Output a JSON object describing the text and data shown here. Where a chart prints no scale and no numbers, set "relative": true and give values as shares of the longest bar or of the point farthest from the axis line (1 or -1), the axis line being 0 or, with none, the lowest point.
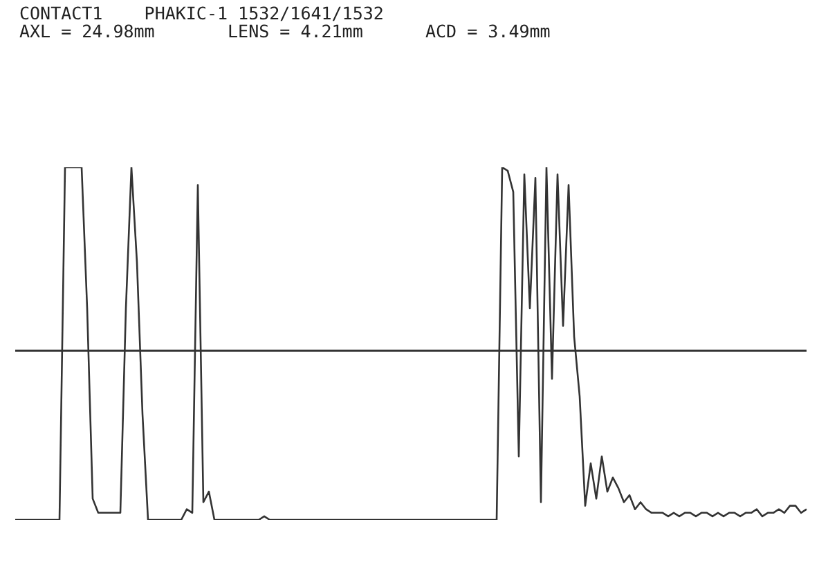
{
  "chart_data": {
    "type": "line",
    "relative": true,
    "title": "CONTACT1    PHAKIC-1 1532/1641/1532",
    "subtitle": "AXL = 24.98mm       LENS = 4.21mm      ACD = 3.49mm",
    "categories": [
      null,
      null,
      null,
      null,
      null,
      null,
      null,
      null,
      null,
      null,
      null,
      null,
      null,
      null,
      null,
      null,
      null,
      null,
      null,
      null,
      null,
      null,
      null,
      null,
      null,
      null,
      null,
      null,
      null,
      null,
      null,
      null,
      null,
      null,
      null,
      null,
      null,
      null,
      null,
      null,
      null,
      null,
      null,
      null,
      null,
      null,
      null,
      null,
      null,
      null,
      null,
      null,
      null,
      null,
      null,
      null,
      null,
      null,
      null,
      null,
      null,
      null,
      null,
      null,
      null,
      null,
      null,
      null,
      null,
      null,
      null,
      null,
      null,
      null,
      null,
      null,
      null,
      null,
      null,
      null,
      null,
      null,
      null,
      null,
      null,
      null,
      null,
      null,
      null,
      null,
      null,
      null,
      null,
      null,
      null,
      null,
      null,
      null,
      null,
      null,
      null,
      null,
      null,
      null,
      null,
      null,
      null,
      null,
      null,
      null,
      null,
      null,
      null,
      null,
      null,
      null,
      null,
      null,
      null,
      null,
      null,
      null,
      null,
      null,
      null,
      null,
      null,
      null,
      null,
      null,
      null,
      null,
      null,
      null,
      null,
      null,
      null,
      null,
      null,
      null,
      null,
      null,
      null,
      null
    ],
    "series": [
      {
        "color": "#333333",
        "values": [
          0,
          0,
          0,
          0,
          0,
          0,
          0,
          0,
          0,
          1,
          1,
          1,
          1,
          0.6,
          0.06,
          0.02,
          0.02,
          0.02,
          0.02,
          0.02,
          0.6,
          1,
          0.73,
          0.3,
          0,
          0,
          0,
          0,
          0,
          0,
          0,
          0.03,
          0.02,
          0.95,
          0.05,
          0.08,
          0,
          0,
          0,
          0,
          0,
          0,
          0,
          0,
          0,
          0.01,
          0,
          0,
          0,
          0,
          0,
          0,
          0,
          0,
          0,
          0,
          0,
          0,
          0,
          0,
          0,
          0,
          0,
          0,
          0,
          0,
          0,
          0,
          0,
          0,
          0,
          0,
          0,
          0,
          0,
          0,
          0,
          0,
          0,
          0,
          0,
          0,
          0,
          0,
          0,
          0,
          0,
          0,
          1,
          0.99,
          0.93,
          0.18,
          0.98,
          0.6,
          0.97,
          0.05,
          1,
          0.4,
          0.98,
          0.55,
          0.95,
          0.52,
          0.35,
          0.04,
          0.16,
          0.06,
          0.18,
          0.08,
          0.12,
          0.09,
          0.05,
          0.07,
          0.03,
          0.05,
          0.03,
          0.02,
          0.02,
          0.02,
          0.01,
          0.02,
          0.01,
          0.02,
          0.02,
          0.01,
          0.02,
          0.02,
          0.01,
          0.02,
          0.01,
          0.02,
          0.02,
          0.01,
          0.02,
          0.02,
          0.03,
          0.01,
          0.02,
          0.02,
          0.03,
          0.02,
          0.04,
          0.04,
          0.02,
          0.03
        ]
      }
    ],
    "ref_lines": [
      {
        "axis": "y",
        "value": 0.48,
        "color": "#333333"
      }
    ],
    "marker": "none",
    "line_style": "solid"
  }
}
